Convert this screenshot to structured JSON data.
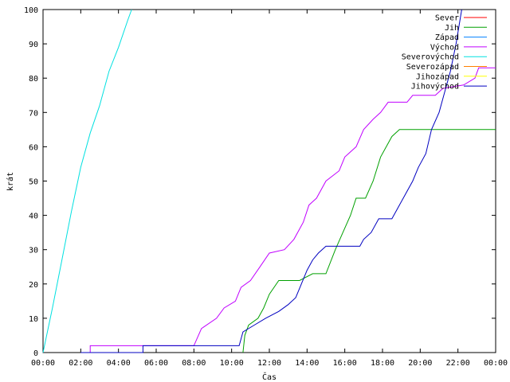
{
  "chart_data": {
    "type": "line",
    "xlabel": "Čas",
    "ylabel": "krát",
    "xlim": [
      0,
      24
    ],
    "ylim": [
      0,
      100
    ],
    "x_ticks": [
      {
        "v": 0,
        "label": "00:00"
      },
      {
        "v": 2,
        "label": "02:00"
      },
      {
        "v": 4,
        "label": "04:00"
      },
      {
        "v": 6,
        "label": "06:00"
      },
      {
        "v": 8,
        "label": "08:00"
      },
      {
        "v": 10,
        "label": "10:00"
      },
      {
        "v": 12,
        "label": "12:00"
      },
      {
        "v": 14,
        "label": "14:00"
      },
      {
        "v": 16,
        "label": "16:00"
      },
      {
        "v": 18,
        "label": "18:00"
      },
      {
        "v": 20,
        "label": "20:00"
      },
      {
        "v": 22,
        "label": "22:00"
      },
      {
        "v": 24,
        "label": "00:00"
      }
    ],
    "y_ticks": [
      0,
      10,
      20,
      30,
      40,
      50,
      60,
      70,
      80,
      90,
      100
    ],
    "grid": false,
    "legend_position": "top-right",
    "series": [
      {
        "name": "Sever",
        "color": "#ff0000",
        "points": []
      },
      {
        "name": "Jih",
        "color": "#00a000",
        "points": [
          [
            10.6,
            0
          ],
          [
            10.7,
            5
          ],
          [
            10.9,
            8
          ],
          [
            11.4,
            10
          ],
          [
            11.7,
            13
          ],
          [
            12.0,
            17
          ],
          [
            12.5,
            21
          ],
          [
            13.6,
            21
          ],
          [
            14.3,
            23
          ],
          [
            15.0,
            23
          ],
          [
            15.5,
            30
          ],
          [
            15.9,
            35
          ],
          [
            16.3,
            40
          ],
          [
            16.6,
            45
          ],
          [
            17.1,
            45
          ],
          [
            17.5,
            50
          ],
          [
            17.9,
            57
          ],
          [
            18.2,
            60
          ],
          [
            18.5,
            63
          ],
          [
            18.9,
            65
          ],
          [
            24.0,
            65
          ]
        ]
      },
      {
        "name": "Západ",
        "color": "#0080ff",
        "points": []
      },
      {
        "name": "Východ",
        "color": "#c000ff",
        "points": [
          [
            2.5,
            0
          ],
          [
            2.5,
            2
          ],
          [
            8.0,
            2
          ],
          [
            8.4,
            7
          ],
          [
            9.2,
            10
          ],
          [
            9.6,
            13
          ],
          [
            10.2,
            15
          ],
          [
            10.5,
            19
          ],
          [
            11.0,
            21
          ],
          [
            11.5,
            25
          ],
          [
            12.0,
            29
          ],
          [
            12.8,
            30
          ],
          [
            13.3,
            33
          ],
          [
            13.8,
            38
          ],
          [
            14.1,
            43
          ],
          [
            14.5,
            45
          ],
          [
            15.0,
            50
          ],
          [
            15.7,
            53
          ],
          [
            16.0,
            57
          ],
          [
            16.6,
            60
          ],
          [
            17.0,
            65
          ],
          [
            17.5,
            68
          ],
          [
            17.9,
            70
          ],
          [
            18.3,
            73
          ],
          [
            19.3,
            73
          ],
          [
            19.6,
            75
          ],
          [
            20.8,
            75
          ],
          [
            21.2,
            77
          ],
          [
            22.3,
            78
          ],
          [
            22.9,
            80
          ],
          [
            23.1,
            83
          ],
          [
            24.0,
            83
          ]
        ]
      },
      {
        "name": "Severovýchod",
        "color": "#00e0e0",
        "points": [
          [
            0.0,
            0
          ],
          [
            0.5,
            13
          ],
          [
            1.0,
            27
          ],
          [
            1.5,
            41
          ],
          [
            2.0,
            54
          ],
          [
            2.5,
            64
          ],
          [
            3.0,
            72
          ],
          [
            3.5,
            82
          ],
          [
            4.0,
            89
          ],
          [
            4.5,
            97
          ],
          [
            4.7,
            100
          ]
        ]
      },
      {
        "name": "Severozápad",
        "color": "#ff8000",
        "points": []
      },
      {
        "name": "Jihozápad",
        "color": "#ffff00",
        "points": []
      },
      {
        "name": "Jihovýchod",
        "color": "#0000c0",
        "points": [
          [
            2.0,
            0
          ],
          [
            5.3,
            0
          ],
          [
            5.3,
            2
          ],
          [
            10.4,
            2
          ],
          [
            10.5,
            4
          ],
          [
            10.6,
            6
          ],
          [
            11.2,
            8
          ],
          [
            11.8,
            10
          ],
          [
            12.5,
            12
          ],
          [
            13.0,
            14
          ],
          [
            13.4,
            16
          ],
          [
            13.7,
            20
          ],
          [
            14.0,
            24
          ],
          [
            14.3,
            27
          ],
          [
            14.6,
            29
          ],
          [
            15.0,
            31
          ],
          [
            16.8,
            31
          ],
          [
            17.0,
            33
          ],
          [
            17.4,
            35
          ],
          [
            17.8,
            39
          ],
          [
            18.5,
            39
          ],
          [
            18.8,
            42
          ],
          [
            19.2,
            46
          ],
          [
            19.6,
            50
          ],
          [
            19.9,
            54
          ],
          [
            20.3,
            58
          ],
          [
            20.6,
            65
          ],
          [
            21.0,
            70
          ],
          [
            21.3,
            76
          ],
          [
            21.6,
            82
          ],
          [
            21.9,
            90
          ],
          [
            22.2,
            100
          ]
        ]
      }
    ]
  }
}
